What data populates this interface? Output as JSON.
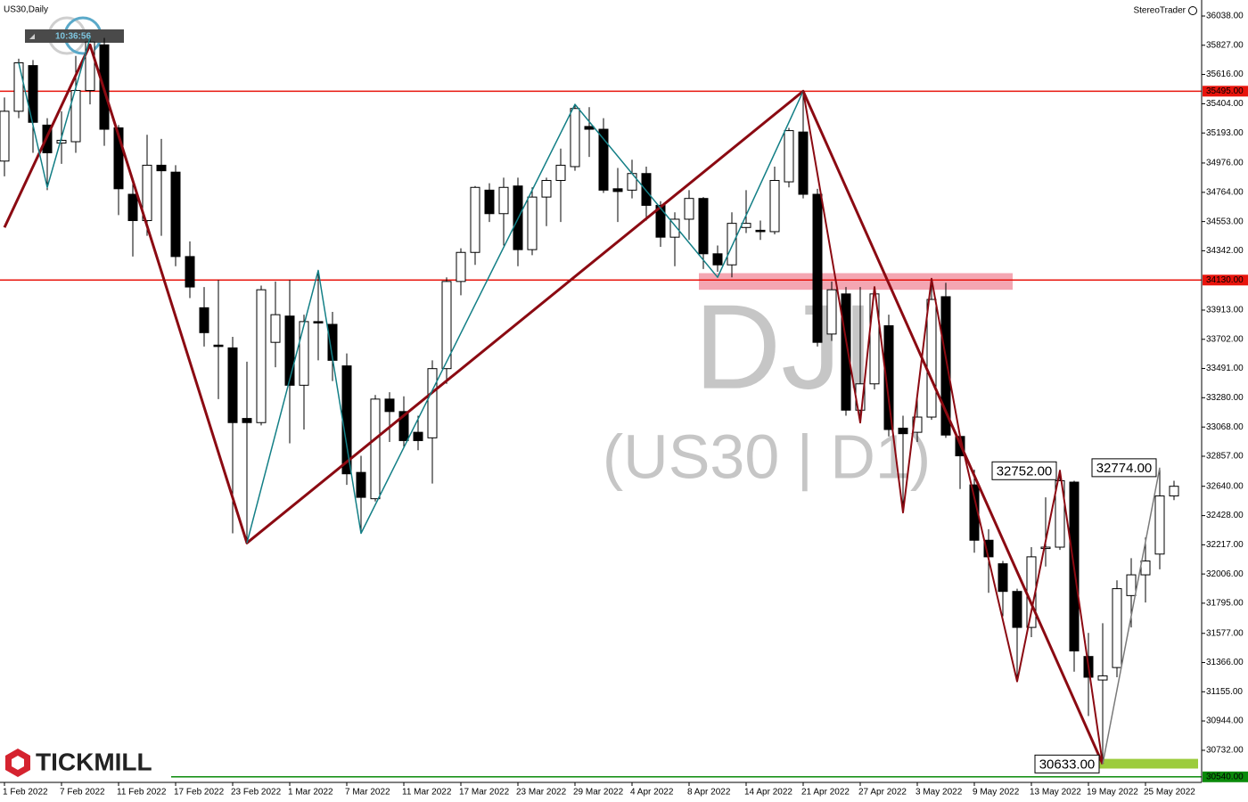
{
  "chart_data": {
    "type": "candlestick",
    "title": "US30,Daily",
    "brand": "StereoTrader",
    "clock": "10:36:56",
    "logo": "TICKMILL",
    "watermark": [
      "DJI",
      "(US30 | D1)"
    ],
    "categories": [
      "1 Feb 2022",
      null,
      null,
      null,
      "7 Feb 2022",
      null,
      null,
      null,
      "11 Feb 2022",
      null,
      null,
      null,
      "17 Feb 2022",
      null,
      null,
      null,
      "23 Feb 2022",
      null,
      null,
      null,
      "1 Mar 2022",
      null,
      null,
      null,
      "7 Mar 2022",
      null,
      null,
      null,
      "11 Mar 2022",
      null,
      null,
      null,
      "17 Mar 2022",
      null,
      null,
      null,
      "23 Mar 2022",
      null,
      null,
      null,
      "29 Mar 2022",
      null,
      null,
      null,
      "4 Apr 2022",
      null,
      null,
      null,
      "8 Apr 2022",
      null,
      null,
      null,
      "14 Apr 2022",
      null,
      null,
      null,
      "21 Apr 2022",
      null,
      null,
      null,
      "27 Apr 2022",
      null,
      null,
      null,
      "3 May 2022",
      null,
      null,
      null,
      "9 May 2022",
      null,
      null,
      null,
      "13 May 2022",
      null,
      null,
      null,
      "19 May 2022",
      null,
      null,
      null,
      "25 May 2022",
      null,
      null
    ],
    "open": [
      34990,
      35350,
      35680,
      35250,
      35120,
      35130,
      35500,
      35830,
      35230,
      34750,
      34560,
      34960,
      34910,
      34300,
      33930,
      33660,
      33640,
      33130,
      33100,
      33680,
      33870,
      33370,
      33830,
      33810,
      33510,
      32740,
      32550,
      33270,
      33180,
      33030,
      32990,
      33490,
      34120,
      34330,
      34780,
      34610,
      34810,
      34350,
      34730,
      34850,
      34950,
      35240,
      35220,
      34790,
      34780,
      34900,
      34670,
      34440,
      34570,
      34720,
      34320,
      34240,
      34510,
      34490,
      34480,
      34840,
      35200,
      34750,
      33740,
      34030,
      33190,
      33380,
      33800,
      33060,
      33030,
      33140,
      34010,
      33000,
      32650,
      32250,
      32080,
      31880,
      31620,
      32190,
      32200,
      32670,
      31410,
      31240,
      31330,
      31850,
      32000,
      32150,
      32570
    ],
    "high": [
      35450,
      35730,
      35720,
      35300,
      35350,
      35750,
      35880,
      35880,
      35250,
      34850,
      35180,
      35150,
      34960,
      34410,
      34080,
      34130,
      33720,
      33540,
      34090,
      34120,
      34130,
      33880,
      34200,
      33900,
      33600,
      32860,
      33300,
      33320,
      33290,
      33150,
      33550,
      34150,
      34360,
      34810,
      34830,
      34870,
      34870,
      34800,
      34870,
      35080,
      35400,
      35380,
      35300,
      34940,
      35000,
      34950,
      34700,
      34620,
      34780,
      34730,
      34380,
      34620,
      34780,
      34560,
      34950,
      35230,
      35470,
      34790,
      34120,
      34080,
      34080,
      34080,
      33880,
      33150,
      33270,
      34140,
      34110,
      33010,
      32760,
      32330,
      32100,
      31900,
      32200,
      32560,
      32760,
      32680,
      31580,
      31650,
      31960,
      32120,
      32270,
      32774,
      32680
    ],
    "low": [
      34880,
      35300,
      35050,
      34780,
      34970,
      35050,
      35400,
      35100,
      34600,
      34300,
      34450,
      34450,
      34230,
      34000,
      33650,
      33270,
      32300,
      32240,
      33080,
      33500,
      32950,
      33050,
      33550,
      33400,
      32650,
      32300,
      32530,
      32960,
      32920,
      32900,
      32660,
      33380,
      34020,
      34240,
      34550,
      34380,
      34230,
      34310,
      34520,
      34550,
      34920,
      35020,
      34760,
      34550,
      34720,
      34560,
      34370,
      34230,
      34420,
      34210,
      34190,
      34150,
      34470,
      34420,
      34460,
      34800,
      34720,
      33650,
      33690,
      33150,
      33100,
      33340,
      33000,
      32470,
      32960,
      33120,
      32990,
      32620,
      32160,
      31870,
      31700,
      31230,
      31550,
      32060,
      32180,
      31300,
      30980,
      30633,
      31260,
      31620,
      31800,
      32040,
      32540
    ],
    "close": [
      35350,
      35700,
      35270,
      35050,
      35140,
      35500,
      35850,
      35220,
      34790,
      34560,
      34960,
      34920,
      34300,
      34080,
      33750,
      33650,
      33100,
      33100,
      34060,
      33880,
      33370,
      33830,
      33820,
      33550,
      32730,
      32560,
      33270,
      33180,
      32970,
      32970,
      33490,
      34120,
      34330,
      34800,
      34610,
      34800,
      34350,
      34730,
      34850,
      34960,
      35370,
      35220,
      34780,
      34770,
      34900,
      34670,
      34440,
      34570,
      34720,
      34320,
      34240,
      34540,
      34540,
      34480,
      34850,
      35210,
      34750,
      33680,
      34060,
      33190,
      33380,
      34030,
      33050,
      33020,
      33140,
      33990,
      33010,
      32860,
      32250,
      32130,
      31880,
      31620,
      32130,
      32200,
      32680,
      31450,
      31260,
      31270,
      31900,
      32000,
      32100,
      32570,
      32640
    ],
    "ylim": [
      30500,
      36154
    ],
    "yticks": [
      {
        "value": 36038,
        "label": "36038.00"
      },
      {
        "value": 35827,
        "label": "35827.00"
      },
      {
        "value": 35616,
        "label": "35616.00"
      },
      {
        "value": 35404,
        "label": "35404.00"
      },
      {
        "value": 35193,
        "label": "35193.00"
      },
      {
        "value": 34976,
        "label": "34976.00"
      },
      {
        "value": 34764,
        "label": "34764.00"
      },
      {
        "value": 34553,
        "label": "34553.00"
      },
      {
        "value": 34342,
        "label": "34342.00"
      },
      {
        "value": 33913,
        "label": "33913.00"
      },
      {
        "value": 33702,
        "label": "33702.00"
      },
      {
        "value": 33491,
        "label": "33491.00"
      },
      {
        "value": 33280,
        "label": "33280.00"
      },
      {
        "value": 33068,
        "label": "33068.00"
      },
      {
        "value": 32857,
        "label": "32857.00"
      },
      {
        "value": 32640,
        "label": "32640.00"
      },
      {
        "value": 32428,
        "label": "32428.00"
      },
      {
        "value": 32217,
        "label": "32217.00"
      },
      {
        "value": 32006,
        "label": "32006.00"
      },
      {
        "value": 31795,
        "label": "31795.00"
      },
      {
        "value": 31577,
        "label": "31577.00"
      },
      {
        "value": 31366,
        "label": "31366.00"
      },
      {
        "value": 31155,
        "label": "31155.00"
      },
      {
        "value": 30944,
        "label": "30944.00"
      },
      {
        "value": 30732,
        "label": "30732.00"
      }
    ],
    "hlines": [
      {
        "value": 35495,
        "label": "35495.00",
        "color": "#e8140c"
      },
      {
        "value": 34130,
        "label": "34130.00",
        "color": "#e8140c"
      },
      {
        "value": 30540,
        "label": "30540.00",
        "color": "#0a8a0a"
      }
    ],
    "zones": [
      {
        "x": [
          49,
          71
        ],
        "values": [
          34180,
          34060
        ],
        "color": "#f4a6b2"
      },
      {
        "x": [
          77,
          84
        ],
        "values": [
          30670,
          30600
        ],
        "color": "#9ccc3c"
      }
    ],
    "lines": [
      {
        "x": [
          0,
          6,
          17,
          56,
          77
        ],
        "values": [
          34510,
          35830,
          32230,
          35495,
          30633
        ],
        "color": "#8b0a12",
        "width": 3
      },
      {
        "x": [
          1,
          3,
          6
        ],
        "values": [
          35700,
          34800,
          35880
        ],
        "color": "#137f86",
        "width": 1.5
      },
      {
        "x": [
          17,
          22,
          25,
          40,
          50,
          56
        ],
        "values": [
          32230,
          34200,
          32300,
          35400,
          34150,
          35495
        ],
        "color": "#137f86",
        "width": 1.5
      },
      {
        "x": [
          56,
          60,
          61,
          63,
          65,
          67,
          71,
          74,
          77
        ],
        "values": [
          35495,
          33100,
          34080,
          32450,
          34140,
          33000,
          31230,
          32752,
          30633
        ],
        "color": "#8b0a12",
        "width": 2
      },
      {
        "x": [
          77,
          81
        ],
        "values": [
          30633,
          32774
        ],
        "color": "#7a7a7a",
        "width": 1.5
      }
    ],
    "annotations": [
      {
        "label": "32752.00",
        "value": 32752,
        "x": 74
      },
      {
        "label": "32774.00",
        "value": 32774,
        "x": 81
      },
      {
        "label": "30633.00",
        "value": 30633,
        "x": 77
      }
    ],
    "up_color": "#ffffff",
    "down_color": "#000000"
  }
}
